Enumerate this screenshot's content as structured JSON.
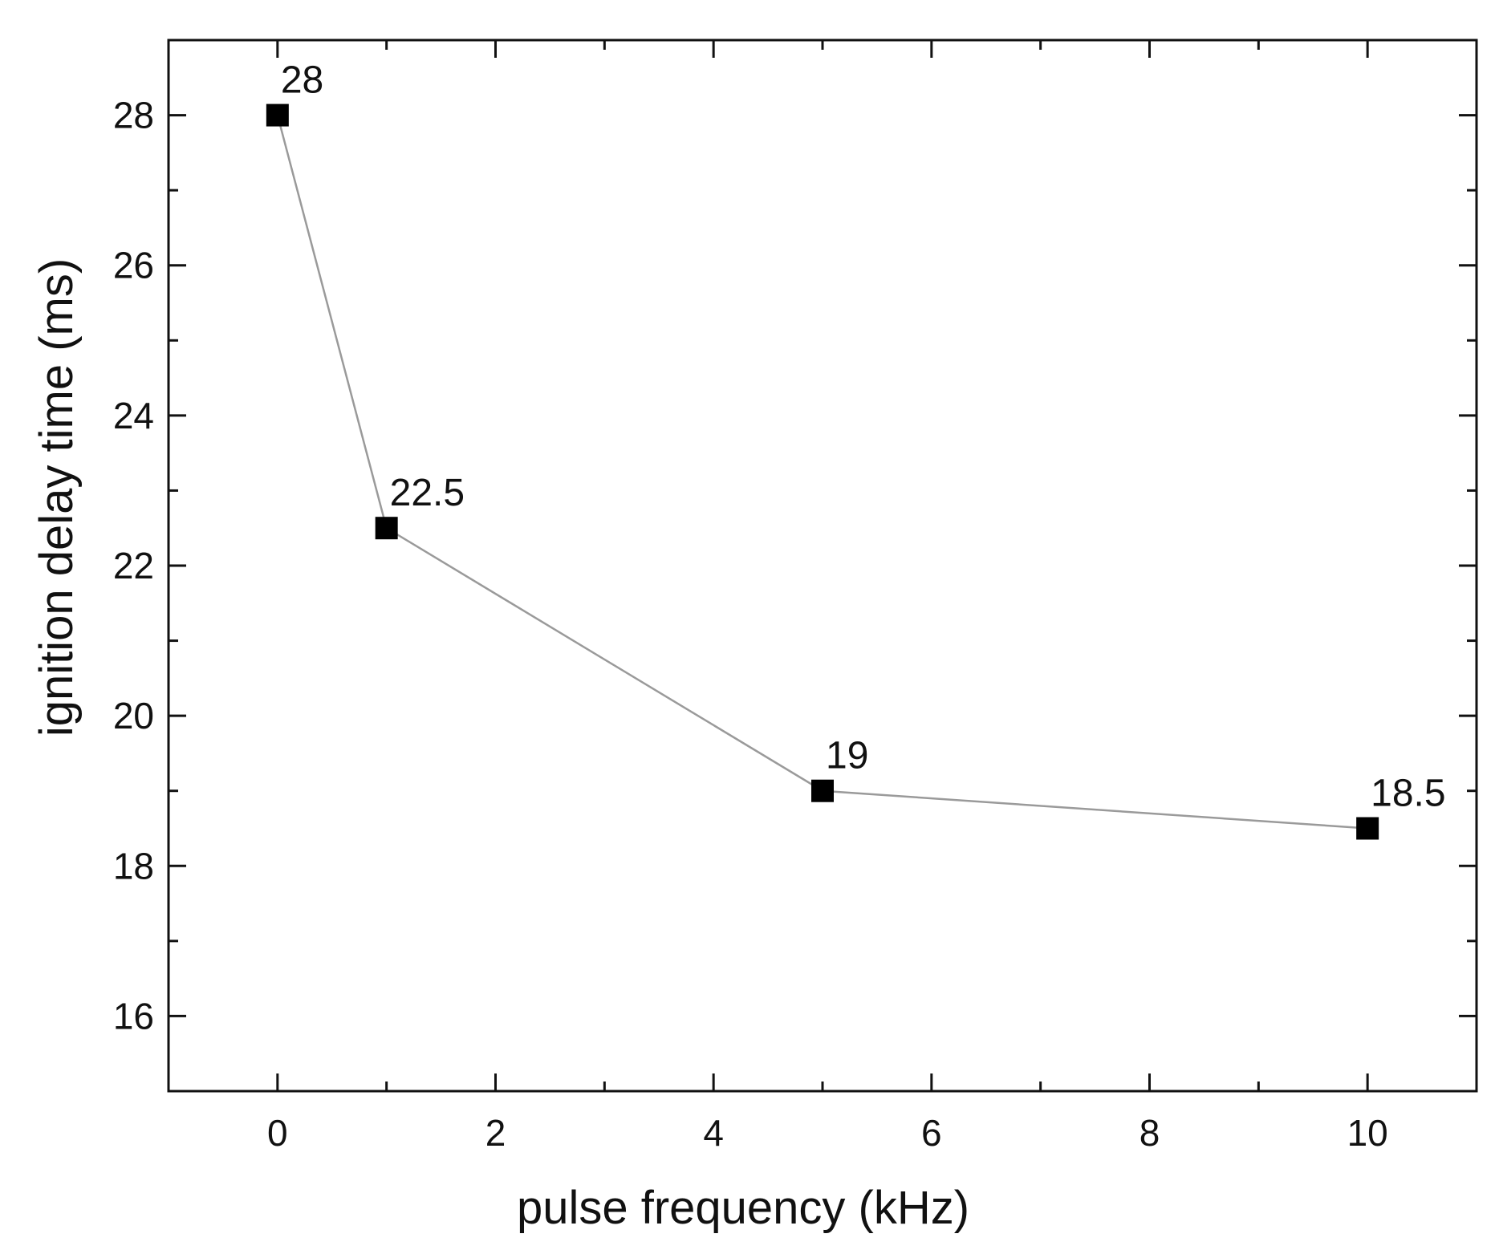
{
  "chart_data": {
    "type": "line",
    "title": "",
    "xlabel": "pulse frequency (kHz)",
    "ylabel": "ignition delay time (ms)",
    "xlim": [
      -1,
      11
    ],
    "ylim": [
      15,
      29
    ],
    "x_ticks": [
      0,
      2,
      4,
      6,
      8,
      10
    ],
    "y_ticks": [
      16,
      18,
      20,
      22,
      24,
      26,
      28
    ],
    "grid": false,
    "legend": "none",
    "marker": "square",
    "colors": {
      "line": "#9a9a9a",
      "marker": "#000000",
      "axis": "#111111"
    },
    "series": [
      {
        "x": [
          0,
          1,
          5,
          10
        ],
        "y": [
          28,
          22.5,
          19,
          18.5
        ],
        "labels": [
          "28",
          "22.5",
          "19",
          "18.5"
        ]
      }
    ]
  }
}
